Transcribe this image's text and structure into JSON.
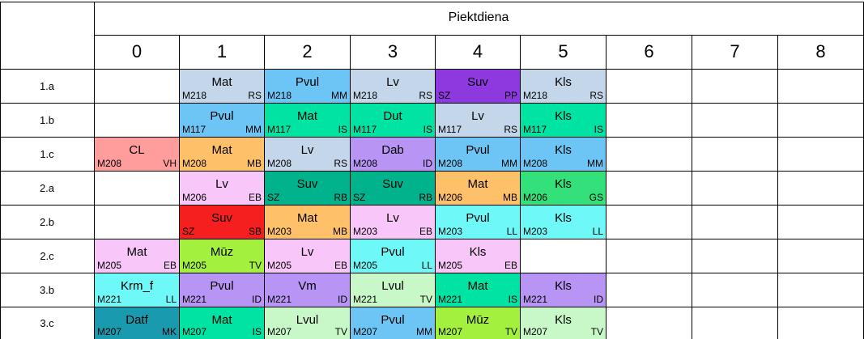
{
  "timetable": {
    "day": "Piektdiena",
    "periods": [
      "0",
      "1",
      "2",
      "3",
      "4",
      "5",
      "6",
      "7",
      "8"
    ],
    "colors": {
      "light_blue": "#c4d6ea",
      "blue": "#6cc5f4",
      "purple": "#8e39e0",
      "teal": "#00e3a3",
      "salmon": "#ff9c9c",
      "orange": "#ffc06a",
      "lavender": "#b895f5",
      "pink": "#f8c6f8",
      "dark_teal": "#00b38c",
      "green": "#34e07a",
      "red": "#f51f1f",
      "cyan": "#6ff8f8",
      "lime": "#a3f03f",
      "pale_green": "#c8f8c8",
      "steel": "#1a9aae"
    },
    "classes": [
      {
        "name": "1.a",
        "lessons": [
          null,
          {
            "subject": "Mat",
            "room": "M218",
            "teacher": "RS",
            "color": "#c4d6ea"
          },
          {
            "subject": "Pvul",
            "room": "M218",
            "teacher": "MM",
            "color": "#6cc5f4"
          },
          {
            "subject": "Lv",
            "room": "M218",
            "teacher": "RS",
            "color": "#c4d6ea"
          },
          {
            "subject": "Suv",
            "room": "SZ",
            "teacher": "PP",
            "color": "#8e39e0"
          },
          {
            "subject": "Kls",
            "room": "M218",
            "teacher": "RS",
            "color": "#c4d6ea"
          },
          null,
          null,
          null
        ]
      },
      {
        "name": "1.b",
        "lessons": [
          null,
          {
            "subject": "Pvul",
            "room": "M117",
            "teacher": "MM",
            "color": "#6cc5f4"
          },
          {
            "subject": "Mat",
            "room": "M117",
            "teacher": "IS",
            "color": "#00e3a3"
          },
          {
            "subject": "Dut",
            "room": "M117",
            "teacher": "IS",
            "color": "#00e3a3"
          },
          {
            "subject": "Lv",
            "room": "M117",
            "teacher": "RS",
            "color": "#c4d6ea"
          },
          {
            "subject": "Kls",
            "room": "M117",
            "teacher": "IS",
            "color": "#00e3a3"
          },
          null,
          null,
          null
        ]
      },
      {
        "name": "1.c",
        "lessons": [
          {
            "subject": "CL",
            "room": "M208",
            "teacher": "VH",
            "color": "#ff9c9c"
          },
          {
            "subject": "Mat",
            "room": "M208",
            "teacher": "MB",
            "color": "#ffc06a"
          },
          {
            "subject": "Lv",
            "room": "M208",
            "teacher": "RS",
            "color": "#c4d6ea"
          },
          {
            "subject": "Dab",
            "room": "M208",
            "teacher": "ID",
            "color": "#b895f5"
          },
          {
            "subject": "Pvul",
            "room": "M208",
            "teacher": "MM",
            "color": "#6cc5f4"
          },
          {
            "subject": "Kls",
            "room": "M208",
            "teacher": "MM",
            "color": "#6cc5f4"
          },
          null,
          null,
          null
        ]
      },
      {
        "name": "2.a",
        "lessons": [
          null,
          {
            "subject": "Lv",
            "room": "M206",
            "teacher": "EB",
            "color": "#f8c6f8"
          },
          {
            "subject": "Suv",
            "room": "SZ",
            "teacher": "RB",
            "color": "#00b38c"
          },
          {
            "subject": "Suv",
            "room": "SZ",
            "teacher": "RB",
            "color": "#00b38c"
          },
          {
            "subject": "Mat",
            "room": "M206",
            "teacher": "MB",
            "color": "#ffc06a"
          },
          {
            "subject": "Kls",
            "room": "M206",
            "teacher": "GS",
            "color": "#34e07a"
          },
          null,
          null,
          null
        ]
      },
      {
        "name": "2.b",
        "lessons": [
          null,
          {
            "subject": "Suv",
            "room": "SZ",
            "teacher": "SB",
            "color": "#f51f1f"
          },
          {
            "subject": "Mat",
            "room": "M203",
            "teacher": "MB",
            "color": "#ffc06a"
          },
          {
            "subject": "Lv",
            "room": "M203",
            "teacher": "EB",
            "color": "#f8c6f8"
          },
          {
            "subject": "Pvul",
            "room": "M203",
            "teacher": "LL",
            "color": "#6ff8f8"
          },
          {
            "subject": "Kls",
            "room": "M203",
            "teacher": "LL",
            "color": "#6ff8f8"
          },
          null,
          null,
          null
        ]
      },
      {
        "name": "2.c",
        "lessons": [
          {
            "subject": "Mat",
            "room": "M205",
            "teacher": "EB",
            "color": "#f8c6f8"
          },
          {
            "subject": "Mūz",
            "room": "M205",
            "teacher": "TV",
            "color": "#a3f03f"
          },
          {
            "subject": "Lv",
            "room": "M205",
            "teacher": "EB",
            "color": "#f8c6f8"
          },
          {
            "subject": "Pvul",
            "room": "M205",
            "teacher": "LL",
            "color": "#6ff8f8"
          },
          {
            "subject": "Kls",
            "room": "M205",
            "teacher": "EB",
            "color": "#f8c6f8"
          },
          null,
          null,
          null,
          null
        ]
      },
      {
        "name": "3.b",
        "lessons": [
          {
            "subject": "Krm_f",
            "room": "M221",
            "teacher": "LL",
            "color": "#6ff8f8"
          },
          {
            "subject": "Pvul",
            "room": "M221",
            "teacher": "ID",
            "color": "#b895f5"
          },
          {
            "subject": "Vm",
            "room": "M221",
            "teacher": "ID",
            "color": "#b895f5"
          },
          {
            "subject": "Lvul",
            "room": "M221",
            "teacher": "TV",
            "color": "#c8f8c8"
          },
          {
            "subject": "Mat",
            "room": "M221",
            "teacher": "IS",
            "color": "#00e3a3"
          },
          {
            "subject": "Kls",
            "room": "M221",
            "teacher": "ID",
            "color": "#b895f5"
          },
          null,
          null,
          null
        ]
      },
      {
        "name": "3.c",
        "lessons": [
          {
            "subject": "Datf",
            "room": "M207",
            "teacher": "MK",
            "color": "#1a9aae"
          },
          {
            "subject": "Mat",
            "room": "M207",
            "teacher": "IS",
            "color": "#00e3a3"
          },
          {
            "subject": "Lvul",
            "room": "M207",
            "teacher": "TV",
            "color": "#c8f8c8"
          },
          {
            "subject": "Pvul",
            "room": "M207",
            "teacher": "MM",
            "color": "#6cc5f4"
          },
          {
            "subject": "Mūz",
            "room": "M207",
            "teacher": "TV",
            "color": "#a3f03f"
          },
          {
            "subject": "Kls",
            "room": "M207",
            "teacher": "TV",
            "color": "#c8f8c8"
          },
          null,
          null,
          null
        ]
      }
    ]
  }
}
